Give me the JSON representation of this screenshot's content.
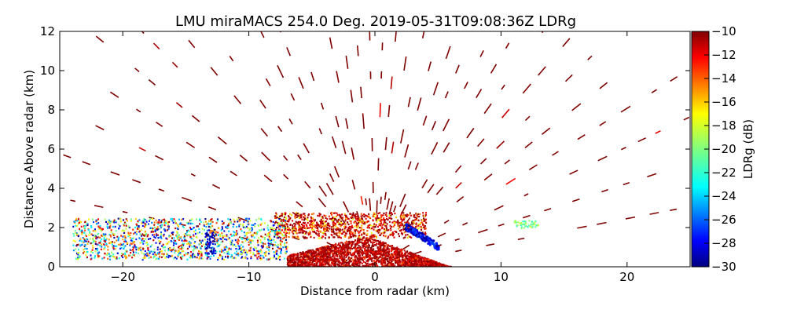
{
  "chart_data": {
    "type": "scatter",
    "title": "LMU miraMACS 254.0 Deg. 2019-05-31T09:08:36Z  LDRg",
    "xlabel": "Distance from radar (km)",
    "ylabel": "Distance Above radar  (km)",
    "xlim": [
      -25,
      25
    ],
    "ylim": [
      0,
      12
    ],
    "x_ticks": [
      -20,
      -10,
      0,
      10,
      20
    ],
    "x_tick_labels": [
      "−20",
      "−10",
      "0",
      "10",
      "20"
    ],
    "y_ticks": [
      0,
      2,
      4,
      6,
      8,
      10,
      12
    ],
    "y_tick_labels": [
      "0",
      "2",
      "4",
      "6",
      "8",
      "10",
      "12"
    ],
    "grid": false,
    "colorbar": {
      "label": "LDRg (dB)",
      "range": [
        -30,
        -10
      ],
      "ticks": [
        -10,
        -12,
        -14,
        -16,
        -18,
        -20,
        -22,
        -24,
        -26,
        -28,
        -30
      ],
      "tick_labels": [
        "−10",
        "−12",
        "−14",
        "−16",
        "−18",
        "−20",
        "−22",
        "−24",
        "−26",
        "−28",
        "−30"
      ],
      "colormap": "jet",
      "colors": [
        "#00007f",
        "#0000ff",
        "#007fff",
        "#00ffff",
        "#7fff7f",
        "#ffff00",
        "#ff7f00",
        "#ff0000",
        "#7f0000"
      ]
    },
    "rhi_scan": {
      "max_range_km": 26,
      "elevation_spokes_deg": [
        7,
        12,
        17,
        22,
        27,
        32,
        37,
        42,
        47,
        52,
        57,
        62,
        67,
        72,
        77,
        82,
        87,
        92,
        97,
        102,
        107,
        112,
        117,
        122,
        127,
        132,
        137,
        142,
        147,
        152,
        157,
        162,
        167,
        172
      ],
      "dominant_ldr_db": -10
    },
    "regions": [
      {
        "name": "near-surface layer",
        "x": [
          -7,
          6
        ],
        "y": [
          0,
          1.4
        ],
        "ldr_db": [
          -14,
          -10
        ]
      },
      {
        "name": "melting layer band",
        "x": [
          -8,
          4
        ],
        "y": [
          1.5,
          2.8
        ],
        "ldr_db": [
          -18,
          -10
        ]
      },
      {
        "name": "low-LDR patch near radar",
        "x": [
          2.3,
          5.0
        ],
        "y": [
          1.3,
          2.4
        ],
        "ldr_db": [
          -30,
          -26
        ]
      },
      {
        "name": "left low-level mixed echoes",
        "x": [
          -24,
          -7
        ],
        "y": [
          0.4,
          2.5
        ],
        "ldr_db": [
          -30,
          -10
        ]
      },
      {
        "name": "blue column",
        "x": [
          -13.5,
          -12.7
        ],
        "y": [
          0.6,
          1.8
        ],
        "ldr_db": [
          -30,
          -28
        ]
      },
      {
        "name": "right-edge echoes",
        "x": [
          11,
          13
        ],
        "y": [
          2.0,
          2.4
        ],
        "ldr_db": [
          -22,
          -18
        ]
      }
    ]
  }
}
